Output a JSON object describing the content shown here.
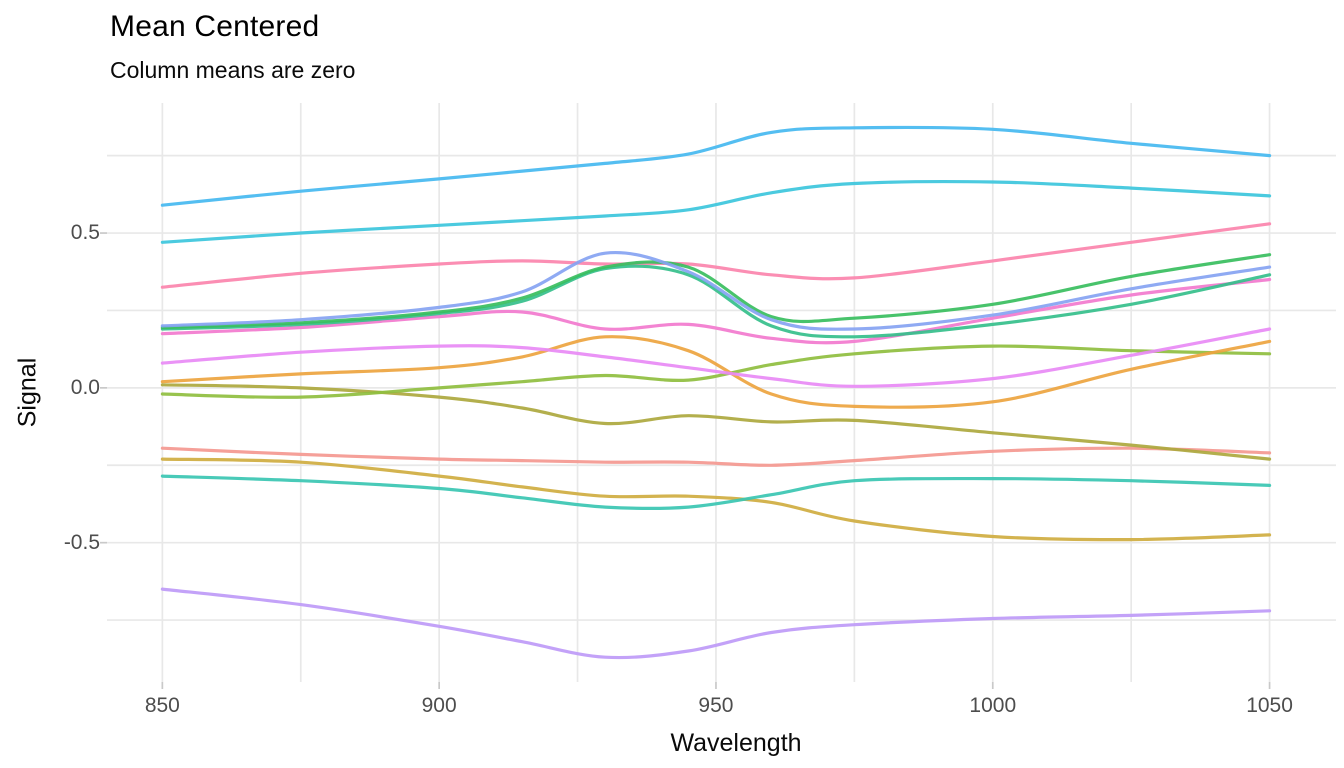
{
  "header": {
    "title": "Mean Centered",
    "subtitle": "Column means are zero"
  },
  "chart_data": {
    "type": "line",
    "title": "Mean Centered",
    "subtitle": "Column means are zero",
    "xlabel": "Wavelength",
    "ylabel": "Signal",
    "grid": "on",
    "legend": "none",
    "x_axis": {
      "label": "Wavelength",
      "tick_labels": [
        "850",
        "900",
        "950",
        "1000",
        "1050"
      ],
      "tick_values": [
        850,
        900,
        950,
        1000,
        1050
      ],
      "gridline_values": [
        850,
        875,
        900,
        925,
        950,
        975,
        1000,
        1025,
        1050
      ],
      "range": [
        840,
        1062
      ]
    },
    "y_axis": {
      "label": "Signal",
      "tick_labels": [
        "0.5",
        "0.0",
        "-0.5"
      ],
      "tick_values": [
        0.5,
        0.0,
        -0.5
      ],
      "gridline_values": [
        0.75,
        0.5,
        0.25,
        0.0,
        -0.25,
        -0.5,
        -0.75
      ],
      "range": [
        -0.95,
        0.92
      ]
    },
    "x": [
      850,
      875,
      900,
      915,
      930,
      945,
      960,
      975,
      1000,
      1025,
      1050
    ],
    "series": [
      {
        "name": "lavender",
        "color": "#be9af7",
        "values": [
          -0.65,
          -0.7,
          -0.77,
          -0.82,
          -0.87,
          -0.85,
          -0.79,
          -0.765,
          -0.745,
          -0.735,
          -0.72
        ]
      },
      {
        "name": "gold",
        "color": "#cfac40",
        "values": [
          -0.23,
          -0.24,
          -0.285,
          -0.32,
          -0.35,
          -0.35,
          -0.37,
          -0.43,
          -0.48,
          -0.49,
          -0.475
        ]
      },
      {
        "name": "teal",
        "color": "#3ac6b2",
        "values": [
          -0.285,
          -0.3,
          -0.325,
          -0.355,
          -0.385,
          -0.385,
          -0.345,
          -0.3,
          -0.293,
          -0.3,
          -0.315
        ]
      },
      {
        "name": "salmon",
        "color": "#f49890",
        "values": [
          -0.195,
          -0.215,
          -0.23,
          -0.235,
          -0.24,
          -0.24,
          -0.25,
          -0.235,
          -0.205,
          -0.195,
          -0.21
        ]
      },
      {
        "name": "olive",
        "color": "#ada83e",
        "values": [
          0.01,
          0.0,
          -0.03,
          -0.065,
          -0.115,
          -0.09,
          -0.11,
          -0.105,
          -0.145,
          -0.185,
          -0.23
        ]
      },
      {
        "name": "chartreuse",
        "color": "#8fbe3f",
        "values": [
          -0.02,
          -0.03,
          0.0,
          0.02,
          0.04,
          0.025,
          0.075,
          0.11,
          0.135,
          0.12,
          0.11
        ]
      },
      {
        "name": "orange",
        "color": "#eda43f",
        "values": [
          0.02,
          0.045,
          0.065,
          0.1,
          0.165,
          0.12,
          -0.02,
          -0.06,
          -0.045,
          0.06,
          0.15
        ]
      },
      {
        "name": "violet",
        "color": "#e88af5",
        "values": [
          0.08,
          0.115,
          0.135,
          0.13,
          0.1,
          0.065,
          0.03,
          0.005,
          0.03,
          0.105,
          0.19
        ]
      },
      {
        "name": "rose-pink",
        "color": "#fb84ac",
        "values": [
          0.325,
          0.37,
          0.4,
          0.41,
          0.4,
          0.4,
          0.365,
          0.355,
          0.41,
          0.47,
          0.53
        ]
      },
      {
        "name": "magenta",
        "color": "#f279ce",
        "values": [
          0.175,
          0.195,
          0.23,
          0.245,
          0.19,
          0.205,
          0.16,
          0.15,
          0.225,
          0.3,
          0.35
        ]
      },
      {
        "name": "sea-green",
        "color": "#35bf8b",
        "values": [
          0.19,
          0.205,
          0.24,
          0.28,
          0.385,
          0.365,
          0.2,
          0.165,
          0.205,
          0.27,
          0.365
        ]
      },
      {
        "name": "kelly-green",
        "color": "#38be5e",
        "values": [
          0.195,
          0.21,
          0.245,
          0.29,
          0.39,
          0.39,
          0.23,
          0.225,
          0.27,
          0.36,
          0.43
        ]
      },
      {
        "name": "cornflower",
        "color": "#85a3f2",
        "values": [
          0.2,
          0.22,
          0.26,
          0.31,
          0.435,
          0.375,
          0.22,
          0.19,
          0.235,
          0.32,
          0.39
        ]
      },
      {
        "name": "cyan",
        "color": "#3cc6dc",
        "values": [
          0.47,
          0.5,
          0.525,
          0.54,
          0.555,
          0.575,
          0.63,
          0.66,
          0.665,
          0.645,
          0.62
        ]
      },
      {
        "name": "sky-blue",
        "color": "#45b8f0",
        "values": [
          0.59,
          0.635,
          0.675,
          0.7,
          0.725,
          0.755,
          0.825,
          0.84,
          0.835,
          0.79,
          0.75
        ]
      }
    ],
    "style": {
      "gridline_color": "#e8e8e8",
      "tick_mark_color": "#c9c9c9",
      "tick_label_color": "#4d4d4d",
      "text_color": "#0a0a0a",
      "background": "#ffffff"
    }
  }
}
